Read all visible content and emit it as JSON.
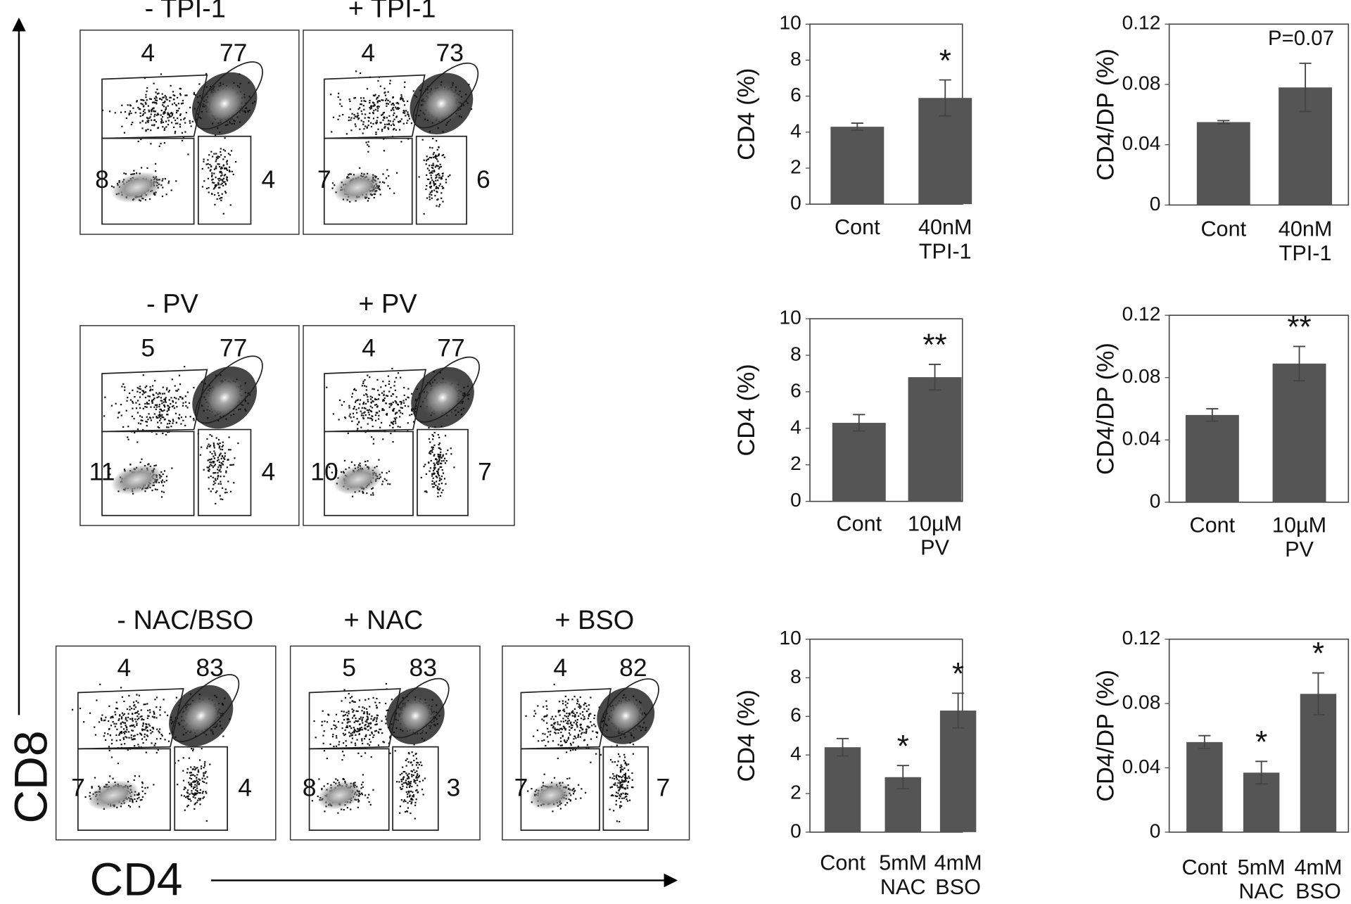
{
  "axis_labels": {
    "y": "CD8",
    "x": "CD4"
  },
  "flow_plots": [
    {
      "title": "- TPI-1",
      "gates": [
        4,
        77,
        8,
        4
      ]
    },
    {
      "title": "+ TPI-1",
      "gates": [
        4,
        73,
        7,
        6
      ]
    },
    {
      "title": "- PV",
      "gates": [
        5,
        77,
        11,
        4
      ]
    },
    {
      "title": "+ PV",
      "gates": [
        4,
        77,
        10,
        7
      ]
    },
    {
      "title": "- NAC/BSO",
      "gates": [
        4,
        83,
        7,
        4
      ]
    },
    {
      "title": "+ NAC",
      "gates": [
        5,
        83,
        8,
        3
      ]
    },
    {
      "title": "+ BSO",
      "gates": [
        4,
        82,
        7,
        7
      ]
    }
  ],
  "chart_data": [
    {
      "type": "bar",
      "ylabel": "CD4 (%)",
      "categories": [
        "Cont",
        "40nM\nTPI-1"
      ],
      "values": [
        4.3,
        5.9
      ],
      "errors": [
        0.2,
        1.0
      ],
      "annotations": [
        null,
        "*"
      ],
      "color": "#555555",
      "ylim": [
        0,
        10
      ],
      "yticks": [
        0,
        2,
        4,
        6,
        8,
        10
      ]
    },
    {
      "type": "bar",
      "ylabel": "CD4/DP (%)",
      "categories": [
        "Cont",
        "40nM\nTPI-1"
      ],
      "values": [
        0.055,
        0.078
      ],
      "errors": [
        0.001,
        0.016
      ],
      "annotation": "P=0.07",
      "color": "#555555",
      "ylim": [
        0,
        0.12
      ],
      "yticks": [
        0,
        0.04,
        0.08,
        0.12
      ]
    },
    {
      "type": "bar",
      "ylabel": "CD4 (%)",
      "categories": [
        "Cont",
        "10µM\nPV"
      ],
      "values": [
        4.3,
        6.8
      ],
      "errors": [
        0.45,
        0.7
      ],
      "annotations": [
        null,
        "**"
      ],
      "color": "#555555",
      "ylim": [
        0,
        10
      ],
      "yticks": [
        0,
        2,
        4,
        6,
        8,
        10
      ]
    },
    {
      "type": "bar",
      "ylabel": "CD4/DP (%)",
      "categories": [
        "Cont",
        "10µM\nPV"
      ],
      "values": [
        0.056,
        0.089
      ],
      "errors": [
        0.004,
        0.011
      ],
      "annotations": [
        null,
        "**"
      ],
      "color": "#555555",
      "ylim": [
        0,
        0.12
      ],
      "yticks": [
        0,
        0.04,
        0.08,
        0.12
      ]
    },
    {
      "type": "bar",
      "ylabel": "CD4 (%)",
      "categories": [
        "Cont",
        "5mM\nNAC",
        "4mM\nBSO"
      ],
      "values": [
        4.4,
        2.85,
        6.3
      ],
      "errors": [
        0.45,
        0.6,
        0.9
      ],
      "annotations": [
        null,
        "*",
        "*"
      ],
      "color": "#555555",
      "ylim": [
        0,
        10
      ],
      "yticks": [
        0,
        2,
        4,
        6,
        8,
        10
      ]
    },
    {
      "type": "bar",
      "ylabel": "CD4/DP (%)",
      "categories": [
        "Cont",
        "5mM\nNAC",
        "4mM\nBSO"
      ],
      "values": [
        0.056,
        0.037,
        0.086
      ],
      "errors": [
        0.004,
        0.007,
        0.013
      ],
      "annotations": [
        null,
        "*",
        "*"
      ],
      "color": "#555555",
      "ylim": [
        0,
        0.12
      ],
      "yticks": [
        0,
        0.04,
        0.08,
        0.12
      ]
    }
  ]
}
